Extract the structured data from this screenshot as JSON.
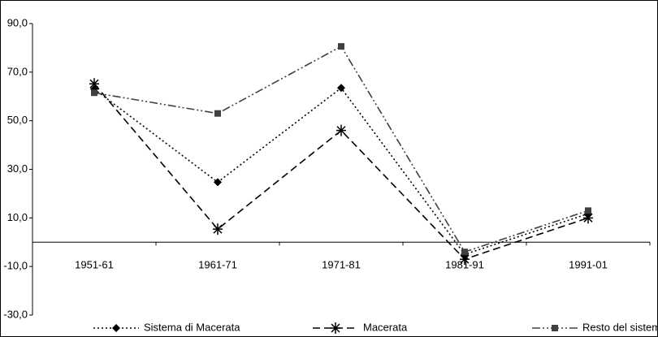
{
  "chart_data": {
    "type": "line",
    "categories": [
      "1951-61",
      "1961-71",
      "1971-81",
      "1981-91",
      "1991-01"
    ],
    "series": [
      {
        "name": "Sistema di Macerata",
        "color": "#000000",
        "marker": "diamond",
        "dash": "2,3",
        "values": [
          63,
          24.7,
          63.5,
          -5,
          11.7
        ]
      },
      {
        "name": "Macerata",
        "color": "#000000",
        "marker": "star",
        "dash": "9,5",
        "values": [
          65.2,
          5.4,
          46,
          -7,
          10
        ]
      },
      {
        "name": "Resto del sistema",
        "color": "#404040",
        "marker": "square",
        "dash": "10,3,2,3,2,3",
        "values": [
          61.5,
          53,
          80.6,
          -4,
          13
        ]
      }
    ],
    "ylim": [
      -30,
      90
    ],
    "yticks": [
      {
        "value": -30,
        "label": "-30,0"
      },
      {
        "value": -10,
        "label": "-10,0"
      },
      {
        "value": 10,
        "label": "10,0"
      },
      {
        "value": 30,
        "label": "30,0"
      },
      {
        "value": 50,
        "label": "50,0"
      },
      {
        "value": 70,
        "label": "70,0"
      },
      {
        "value": 90,
        "label": "90,0"
      }
    ],
    "grid": false
  }
}
